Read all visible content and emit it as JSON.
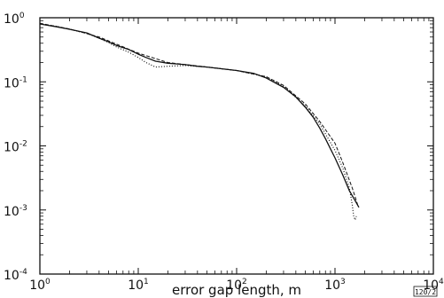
{
  "chart_data": {
    "type": "line",
    "title": "",
    "xlabel": "error gap length, m",
    "ylabel": "",
    "x_scale": "log",
    "y_scale": "log",
    "xlim": [
      1,
      10000
    ],
    "ylim": [
      0.0001,
      1
    ],
    "grid": false,
    "x_ticks": [
      {
        "base": "10",
        "exp": "0"
      },
      {
        "base": "10",
        "exp": "1"
      },
      {
        "base": "10",
        "exp": "2"
      },
      {
        "base": "10",
        "exp": "3"
      },
      {
        "base": "10",
        "exp": "4"
      }
    ],
    "y_ticks": [
      {
        "base": "10",
        "exp": "0"
      },
      {
        "base": "10",
        "exp": "-1"
      },
      {
        "base": "10",
        "exp": "-2"
      },
      {
        "base": "10",
        "exp": "-3"
      },
      {
        "base": "10",
        "exp": "-4"
      }
    ],
    "series": [
      {
        "style": "solid",
        "x": [
          1,
          1.5,
          2,
          3,
          4,
          5,
          6,
          8,
          10,
          12,
          15,
          20,
          25,
          30,
          40,
          50,
          70,
          100,
          150,
          200,
          300,
          400,
          500,
          600,
          700,
          800,
          900,
          1000,
          1200,
          1400,
          1600,
          1750
        ],
        "y": [
          0.8,
          0.72,
          0.66,
          0.58,
          0.48,
          0.42,
          0.37,
          0.32,
          0.27,
          0.24,
          0.21,
          0.195,
          0.19,
          0.185,
          0.175,
          0.17,
          0.16,
          0.15,
          0.135,
          0.115,
          0.082,
          0.058,
          0.04,
          0.028,
          0.019,
          0.013,
          0.009,
          0.0065,
          0.0035,
          0.002,
          0.0014,
          0.0011
        ]
      },
      {
        "style": "dotted",
        "x": [
          1,
          1.5,
          2,
          3,
          4,
          5,
          6,
          8,
          10,
          12,
          15,
          20,
          30,
          50,
          100,
          200,
          300,
          500,
          700,
          1000,
          1200,
          1400,
          1500,
          1550,
          1600,
          1650
        ],
        "y": [
          0.8,
          0.73,
          0.66,
          0.57,
          0.48,
          0.41,
          0.35,
          0.29,
          0.24,
          0.2,
          0.17,
          0.175,
          0.18,
          0.17,
          0.15,
          0.12,
          0.085,
          0.042,
          0.022,
          0.0085,
          0.0045,
          0.0022,
          0.0012,
          0.0008,
          0.0007,
          0.0008
        ]
      },
      {
        "style": "dashed",
        "x": [
          1,
          2,
          4,
          10,
          20,
          50,
          100,
          200,
          300,
          500,
          700,
          1000,
          1200,
          1500,
          1700
        ],
        "y": [
          0.82,
          0.67,
          0.5,
          0.28,
          0.2,
          0.17,
          0.15,
          0.12,
          0.088,
          0.045,
          0.024,
          0.011,
          0.0055,
          0.0022,
          0.0012
        ]
      }
    ]
  },
  "figure_id": "120/2"
}
